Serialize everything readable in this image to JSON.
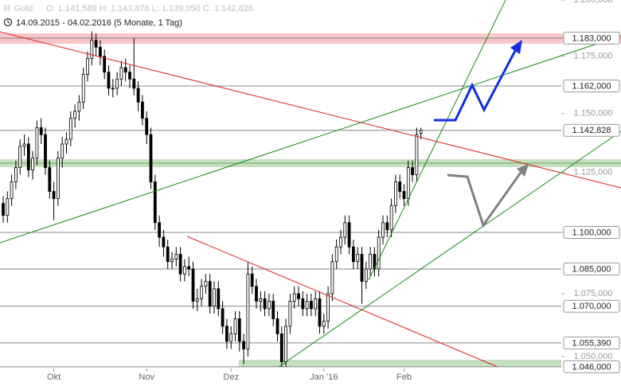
{
  "chart_data": {
    "type": "candlestick",
    "title": "Gold",
    "quote": "O: 1.141,589 H: 1.143,878 L: 1.139,050 C: 1.142,828",
    "period": "14.09.2015 - 04.02.2016 (5 Monate, 1 Tag)",
    "log": true,
    "up_color": "#ffffff",
    "down_color": "#000000",
    "level_color": "#888888",
    "ylim": [
      1.0385,
      1.2
    ],
    "yticks": [
      {
        "value": 1.2,
        "label": "1.200,000"
      },
      {
        "value": 1.175,
        "label": "1.175,000"
      },
      {
        "value": 1.15,
        "label": "1.150,000"
      },
      {
        "value": 1.125,
        "label": "1.125,000"
      },
      {
        "value": 1.1,
        "label": "1.100,000"
      },
      {
        "value": 1.075,
        "label": "1.075,000"
      },
      {
        "value": 1.05,
        "label": "1.050,000"
      }
    ],
    "levels": [
      {
        "value": 1.183,
        "label": "1.183,000"
      },
      {
        "value": 1.162,
        "label": "1.162,000"
      },
      {
        "value": 1.142828,
        "label": "1.142,828"
      },
      {
        "value": 1.1,
        "label": "1.100,000"
      },
      {
        "value": 1.085,
        "label": "1.085,000"
      },
      {
        "value": 1.07,
        "label": "1.070,000"
      },
      {
        "value": 1.05539,
        "label": "1.055,390"
      },
      {
        "value": 1.046,
        "label": "1.046,000"
      }
    ],
    "categories": [
      null,
      null,
      null,
      null,
      null,
      null,
      null,
      null,
      null,
      null,
      null,
      null,
      "Okt",
      null,
      null,
      null,
      null,
      null,
      null,
      null,
      null,
      null,
      null,
      null,
      null,
      null,
      null,
      null,
      null,
      null,
      null,
      null,
      null,
      null,
      "Nov",
      null,
      null,
      null,
      null,
      null,
      null,
      null,
      null,
      null,
      null,
      null,
      null,
      null,
      null,
      null,
      null,
      null,
      null,
      null,
      "Dez",
      null,
      null,
      null,
      null,
      null,
      null,
      null,
      null,
      null,
      null,
      null,
      null,
      null,
      null,
      null,
      null,
      null,
      null,
      null,
      null,
      null,
      "Jan '16",
      null,
      null,
      null,
      null,
      null,
      null,
      null,
      null,
      null,
      null,
      null,
      null,
      null,
      null,
      null,
      null,
      null,
      null,
      "Feb",
      null,
      null,
      null,
      null
    ],
    "open": [
      1.112,
      1.107,
      1.114,
      1.121,
      1.127,
      1.136,
      1.137,
      1.126,
      1.131,
      1.144,
      1.141,
      1.127,
      1.117,
      1.114,
      1.131,
      1.137,
      1.139,
      1.148,
      1.151,
      1.155,
      1.167,
      1.174,
      1.182,
      1.179,
      1.175,
      1.168,
      1.161,
      1.161,
      1.165,
      1.17,
      1.168,
      1.165,
      1.161,
      1.155,
      1.148,
      1.141,
      1.121,
      1.104,
      1.098,
      1.094,
      1.088,
      1.089,
      1.091,
      1.083,
      1.086,
      1.085,
      1.072,
      1.073,
      1.078,
      1.08,
      1.07,
      1.077,
      1.069,
      1.062,
      1.056,
      1.059,
      1.065,
      1.056,
      1.053,
      1.083,
      1.078,
      1.072,
      1.073,
      1.069,
      1.072,
      1.065,
      1.059,
      1.048,
      1.062,
      1.072,
      1.075,
      1.073,
      1.069,
      1.072,
      1.069,
      1.073,
      1.062,
      1.064,
      1.075,
      1.088,
      1.094,
      1.098,
      1.104,
      1.094,
      1.088,
      1.091,
      1.08,
      1.085,
      1.091,
      1.085,
      1.098,
      1.104,
      1.101,
      1.111,
      1.121,
      1.117,
      1.114,
      1.127,
      1.124,
      1.1416
    ],
    "high": [
      1.115,
      1.117,
      1.124,
      1.13,
      1.139,
      1.141,
      1.14,
      1.134,
      1.147,
      1.148,
      1.144,
      1.13,
      1.121,
      1.134,
      1.14,
      1.142,
      1.151,
      1.154,
      1.158,
      1.17,
      1.177,
      1.186,
      1.185,
      1.182,
      1.178,
      1.171,
      1.165,
      1.168,
      1.173,
      1.174,
      1.171,
      1.183,
      1.164,
      1.158,
      1.151,
      1.144,
      1.124,
      1.107,
      1.101,
      1.097,
      1.092,
      1.094,
      1.094,
      1.089,
      1.09,
      1.088,
      1.077,
      1.081,
      1.083,
      1.083,
      1.08,
      1.08,
      1.072,
      1.065,
      1.062,
      1.068,
      1.068,
      1.059,
      1.088,
      1.086,
      1.081,
      1.076,
      1.076,
      1.075,
      1.075,
      1.068,
      1.062,
      1.065,
      1.075,
      1.078,
      1.078,
      1.076,
      1.075,
      1.075,
      1.076,
      1.076,
      1.067,
      1.078,
      1.091,
      1.097,
      1.101,
      1.107,
      1.107,
      1.097,
      1.094,
      1.094,
      1.088,
      1.094,
      1.094,
      1.101,
      1.107,
      1.107,
      1.114,
      1.124,
      1.124,
      1.12,
      1.13,
      1.13,
      1.144,
      1.1439
    ],
    "low": [
      1.104,
      1.104,
      1.111,
      1.118,
      1.124,
      1.132,
      1.123,
      1.122,
      1.128,
      1.137,
      1.124,
      1.114,
      1.105,
      1.111,
      1.127,
      1.133,
      1.136,
      1.144,
      1.147,
      1.152,
      1.164,
      1.171,
      1.175,
      1.171,
      1.165,
      1.158,
      1.157,
      1.158,
      1.162,
      1.164,
      1.161,
      1.158,
      1.151,
      1.145,
      1.137,
      1.118,
      1.101,
      1.094,
      1.09,
      1.085,
      1.085,
      1.086,
      1.08,
      1.08,
      1.082,
      1.069,
      1.068,
      1.07,
      1.075,
      1.067,
      1.067,
      1.066,
      1.059,
      1.053,
      1.053,
      1.056,
      1.052,
      1.047,
      1.05,
      1.075,
      1.069,
      1.068,
      1.066,
      1.066,
      1.062,
      1.056,
      1.046,
      1.046,
      1.059,
      1.069,
      1.07,
      1.066,
      1.066,
      1.066,
      1.066,
      1.059,
      1.059,
      1.061,
      1.072,
      1.085,
      1.091,
      1.095,
      1.091,
      1.085,
      1.085,
      1.071,
      1.077,
      1.082,
      1.082,
      1.082,
      1.095,
      1.098,
      1.098,
      1.108,
      1.114,
      1.111,
      1.111,
      1.121,
      1.121,
      1.1391
    ],
    "close": [
      1.107,
      1.114,
      1.121,
      1.127,
      1.136,
      1.137,
      1.126,
      1.131,
      1.144,
      1.141,
      1.127,
      1.117,
      1.114,
      1.131,
      1.137,
      1.139,
      1.148,
      1.151,
      1.155,
      1.167,
      1.174,
      1.182,
      1.179,
      1.175,
      1.168,
      1.161,
      1.161,
      1.165,
      1.17,
      1.168,
      1.165,
      1.161,
      1.155,
      1.148,
      1.141,
      1.121,
      1.104,
      1.098,
      1.094,
      1.088,
      1.089,
      1.091,
      1.083,
      1.086,
      1.085,
      1.072,
      1.073,
      1.078,
      1.08,
      1.07,
      1.077,
      1.069,
      1.062,
      1.056,
      1.059,
      1.065,
      1.056,
      1.053,
      1.083,
      1.078,
      1.072,
      1.073,
      1.069,
      1.072,
      1.065,
      1.059,
      1.048,
      1.062,
      1.072,
      1.075,
      1.073,
      1.069,
      1.072,
      1.069,
      1.073,
      1.062,
      1.064,
      1.075,
      1.088,
      1.094,
      1.098,
      1.104,
      1.094,
      1.088,
      1.091,
      1.08,
      1.085,
      1.091,
      1.085,
      1.098,
      1.104,
      1.101,
      1.111,
      1.121,
      1.117,
      1.114,
      1.127,
      1.124,
      1.141,
      1.1428
    ]
  }
}
